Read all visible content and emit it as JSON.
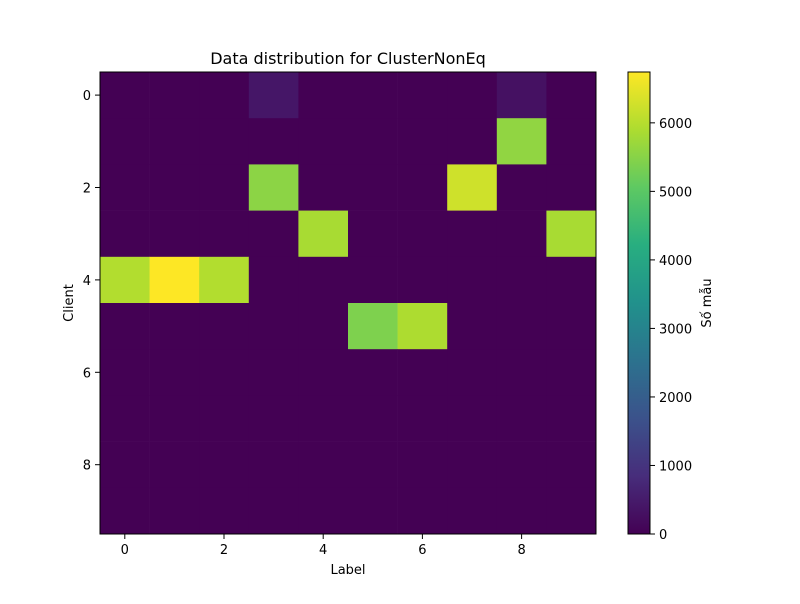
{
  "chart_data": {
    "type": "heatmap",
    "title": "Data distribution for ClusterNonEq",
    "xlabel": "Label",
    "ylabel": "Client",
    "colorbar_label": "Số mẫu",
    "colormap": "viridis",
    "vmin": 0,
    "vmax": 6742,
    "x_categories": [
      0,
      1,
      2,
      3,
      4,
      5,
      6,
      7,
      8,
      9
    ],
    "y_categories": [
      0,
      1,
      2,
      3,
      4,
      5,
      6,
      7,
      8,
      9
    ],
    "x_ticks": [
      "0",
      "2",
      "4",
      "6",
      "8"
    ],
    "y_ticks": [
      "0",
      "2",
      "4",
      "6",
      "8"
    ],
    "colorbar_ticks": [
      "0",
      "1000",
      "2000",
      "3000",
      "4000",
      "5000",
      "6000"
    ],
    "values": [
      [
        0,
        0,
        0,
        400,
        0,
        0,
        0,
        0,
        300,
        0
      ],
      [
        0,
        0,
        0,
        0,
        0,
        0,
        0,
        0,
        5600,
        0
      ],
      [
        0,
        0,
        0,
        5550,
        0,
        0,
        0,
        6250,
        0,
        0
      ],
      [
        0,
        0,
        0,
        0,
        5850,
        0,
        0,
        0,
        0,
        5850
      ],
      [
        5950,
        6742,
        5950,
        0,
        0,
        0,
        0,
        0,
        0,
        0
      ],
      [
        0,
        0,
        0,
        0,
        0,
        5400,
        5900,
        0,
        0,
        0
      ],
      [
        0,
        0,
        0,
        0,
        0,
        0,
        0,
        0,
        0,
        0
      ],
      [
        0,
        0,
        0,
        0,
        0,
        0,
        0,
        0,
        0,
        0
      ],
      [
        0,
        0,
        0,
        0,
        0,
        0,
        0,
        0,
        0,
        0
      ],
      [
        0,
        0,
        0,
        0,
        0,
        0,
        0,
        0,
        0,
        0
      ]
    ],
    "grid": false,
    "legend": "none"
  }
}
